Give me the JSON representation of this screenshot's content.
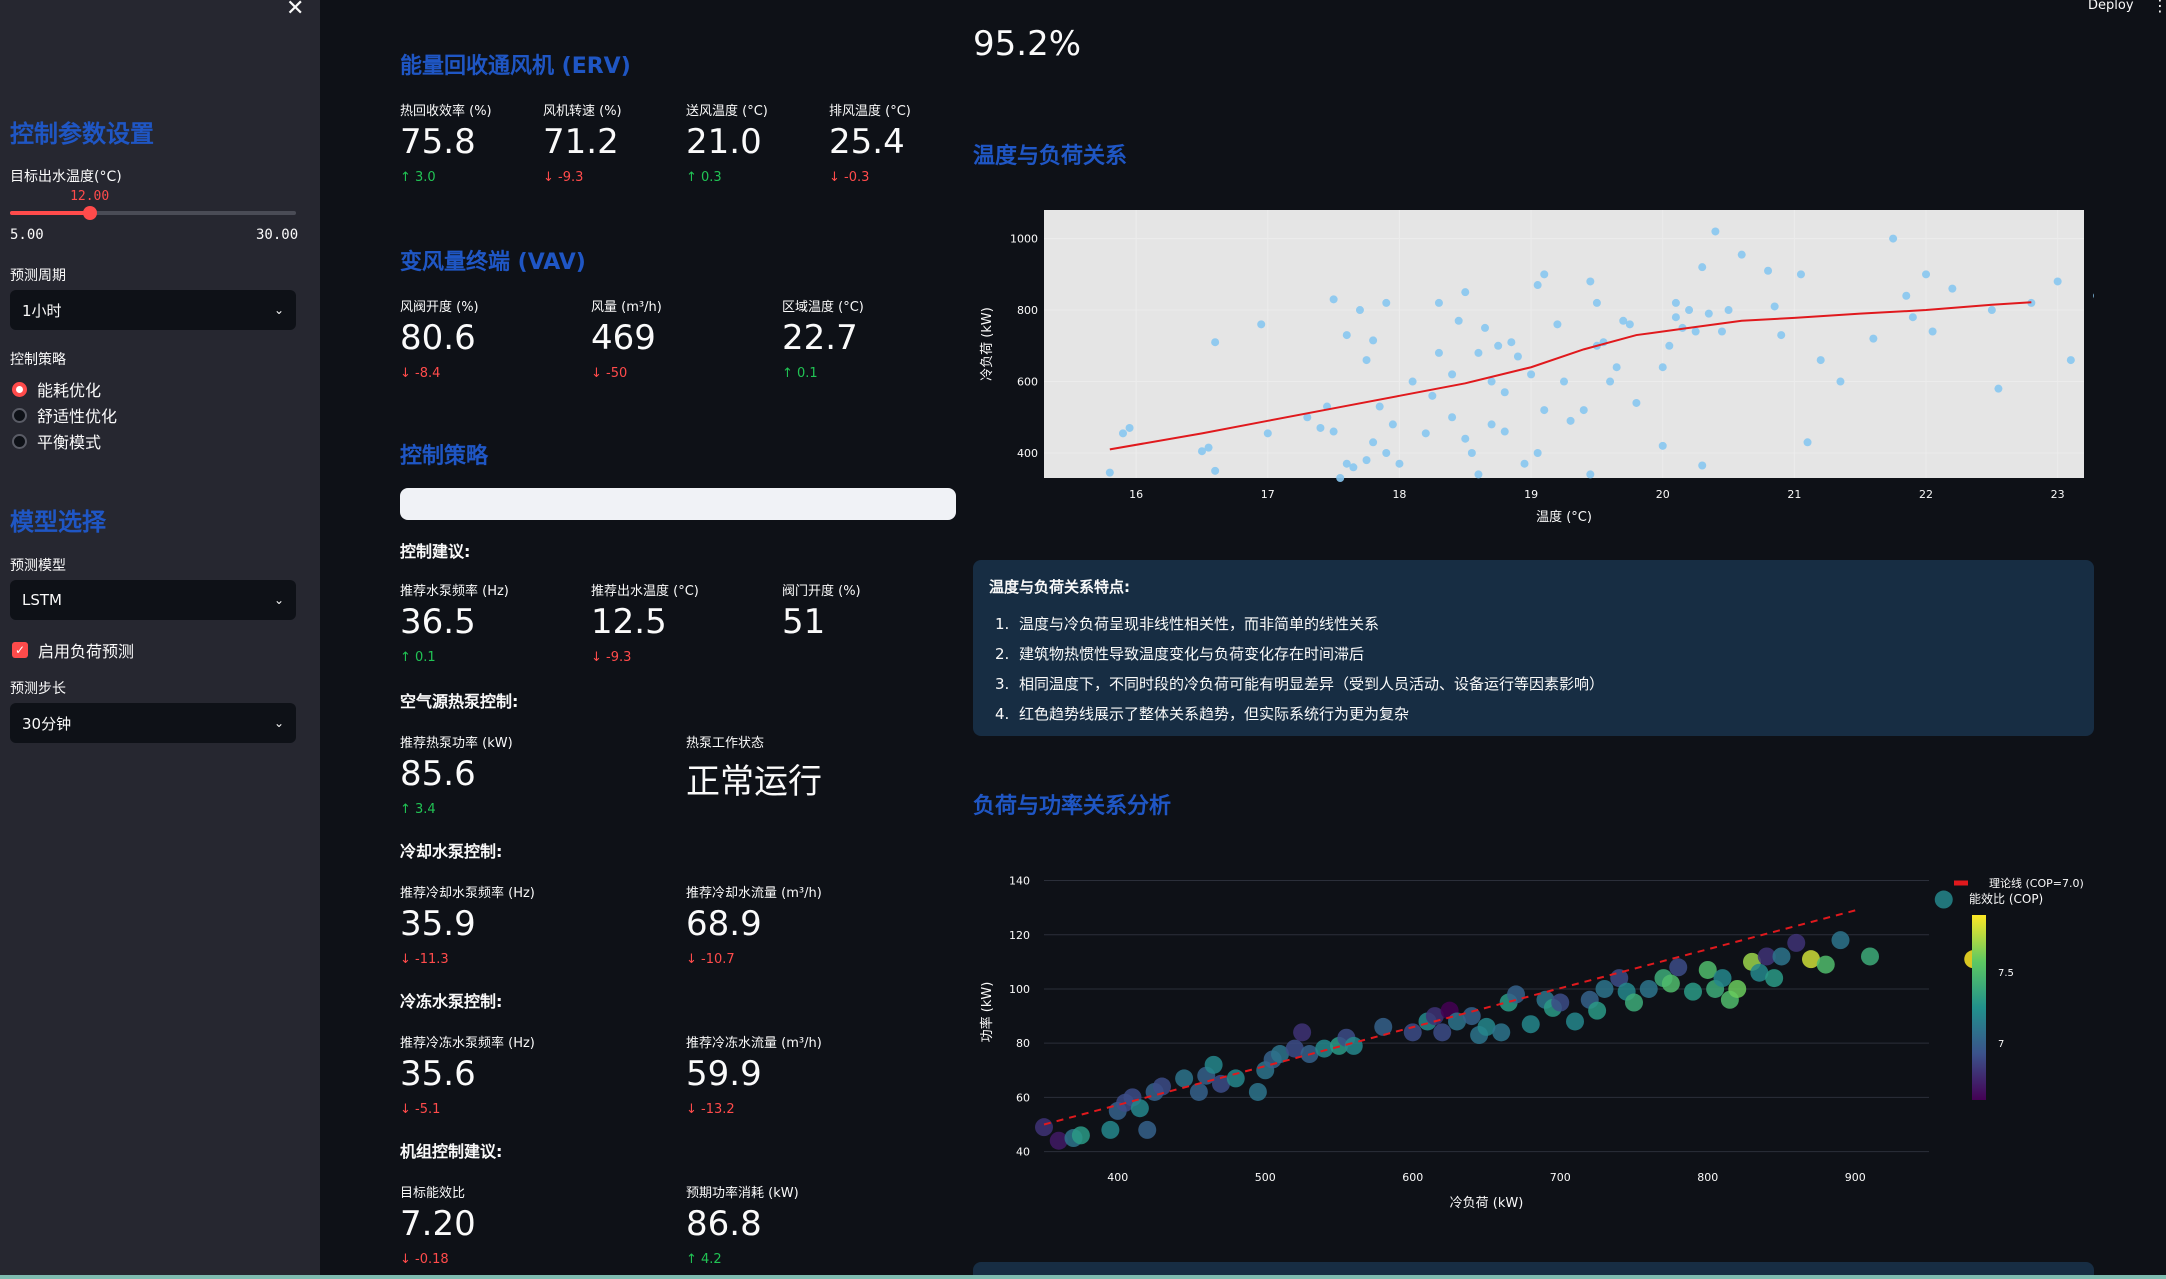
{
  "header": {
    "deploy_label": "Deploy",
    "menu_icon": "kebab-menu-icon"
  },
  "sidebar": {
    "close_icon": "close-icon",
    "control_heading": "控制参数设置",
    "target_temp": {
      "label": "目标出水温度(°C)",
      "value": "12.00",
      "min": "5.00",
      "max": "30.00",
      "fraction": 0.28
    },
    "forecast_period": {
      "label": "预测周期",
      "selected": "1小时"
    },
    "strategy": {
      "label": "控制策略",
      "options": [
        "能耗优化",
        "舒适性优化",
        "平衡模式"
      ],
      "selected_index": 0
    },
    "model_heading": "模型选择",
    "model": {
      "label": "预测模型",
      "selected": "LSTM"
    },
    "load_forecast": {
      "label": "启用负荷预测",
      "checked": true
    },
    "step": {
      "label": "预测步长",
      "selected": "30分钟"
    }
  },
  "erv": {
    "title": "能量回收通风机 (ERV)",
    "metrics": [
      {
        "label": "热回收效率 (%)",
        "value": "75.8",
        "delta": "3.0",
        "dir": "up"
      },
      {
        "label": "风机转速 (%)",
        "value": "71.2",
        "delta": "-9.3",
        "dir": "down"
      },
      {
        "label": "送风温度 (°C)",
        "value": "21.0",
        "delta": "0.3",
        "dir": "up"
      },
      {
        "label": "排风温度 (°C)",
        "value": "25.4",
        "delta": "-0.3",
        "dir": "down"
      }
    ]
  },
  "vav": {
    "title": "变风量终端 (VAV)",
    "metrics": [
      {
        "label": "风阀开度 (%)",
        "value": "80.6",
        "delta": "-8.4",
        "dir": "down"
      },
      {
        "label": "风量 (m³/h)",
        "value": "469",
        "delta": "-50",
        "dir": "down"
      },
      {
        "label": "区域温度 (°C)",
        "value": "22.7",
        "delta": "0.1",
        "dir": "up"
      }
    ]
  },
  "strategy": {
    "title": "控制策略",
    "advice_label": "控制建议:",
    "pump": [
      {
        "label": "推荐水泵频率 (Hz)",
        "value": "36.5",
        "delta": "0.1",
        "dir": "up"
      },
      {
        "label": "推荐出水温度 (°C)",
        "value": "12.5",
        "delta": "-9.3",
        "dir": "down"
      },
      {
        "label": "阀门开度 (%)",
        "value": "51"
      }
    ],
    "heatpump_label": "空气源热泵控制:",
    "heatpump_power": {
      "label": "推荐热泵功率 (kW)",
      "value": "85.6",
      "delta": "3.4",
      "dir": "up"
    },
    "heatpump_state": {
      "label": "热泵工作状态",
      "value": "正常运行"
    },
    "cooling_label": "冷却水泵控制:",
    "cooling": [
      {
        "label": "推荐冷却水泵频率 (Hz)",
        "value": "35.9",
        "delta": "-11.3",
        "dir": "down"
      },
      {
        "label": "推荐冷却水流量 (m³/h)",
        "value": "68.9",
        "delta": "-10.7",
        "dir": "down"
      }
    ],
    "chilled_label": "冷冻水泵控制:",
    "chilled": [
      {
        "label": "推荐冷冻水泵频率 (Hz)",
        "value": "35.6",
        "delta": "-5.1",
        "dir": "down"
      },
      {
        "label": "推荐冷冻水流量 (m³/h)",
        "value": "59.9",
        "delta": "-13.2",
        "dir": "down"
      }
    ],
    "unit_label": "机组控制建议:",
    "unit": [
      {
        "label": "目标能效比",
        "value": "7.20",
        "delta": "-0.18",
        "dir": "down"
      },
      {
        "label": "预期功率消耗 (kW)",
        "value": "86.8",
        "delta": "4.2",
        "dir": "up"
      }
    ]
  },
  "right": {
    "top_value": "95.2%",
    "temp_load_title": "温度与负荷关系",
    "notes_title": "温度与负荷关系特点:",
    "notes": [
      "温度与冷负荷呈现非线性相关性，而非简单的线性关系",
      "建筑物热惯性导致温度变化与负荷变化存在时间滞后",
      "相同温度下，不同时段的冷负荷可能有明显差异（受到人员活动、设备运行等因素影响）",
      "红色趋势线展示了整体关系趋势，但实际系统行为更为复杂"
    ],
    "load_power_title": "负荷与功率关系分析"
  },
  "chart_data": [
    {
      "type": "scatter",
      "xlabel": "温度 (°C)",
      "ylabel": "冷负荷 (kW)",
      "xlim": [
        15.3,
        23.2
      ],
      "ylim": [
        330,
        1080
      ],
      "xticks": [
        16,
        17,
        18,
        19,
        20,
        21,
        22,
        23
      ],
      "yticks": [
        400,
        600,
        800,
        1000
      ],
      "grid": true,
      "point_color": "#87c7f0",
      "trend_color": "#e0191d",
      "points": [
        [
          15.8,
          345
        ],
        [
          15.9,
          455
        ],
        [
          15.95,
          470
        ],
        [
          16.5,
          405
        ],
        [
          16.55,
          415
        ],
        [
          16.6,
          350
        ],
        [
          16.6,
          710
        ],
        [
          16.95,
          760
        ],
        [
          17.0,
          455
        ],
        [
          17.3,
          500
        ],
        [
          17.4,
          470
        ],
        [
          17.45,
          530
        ],
        [
          17.5,
          460
        ],
        [
          17.55,
          330
        ],
        [
          17.6,
          370
        ],
        [
          17.5,
          830
        ],
        [
          17.6,
          730
        ],
        [
          17.65,
          360
        ],
        [
          17.7,
          800
        ],
        [
          17.75,
          660
        ],
        [
          17.8,
          430
        ],
        [
          17.75,
          380
        ],
        [
          17.8,
          715
        ],
        [
          17.85,
          530
        ],
        [
          17.9,
          400
        ],
        [
          17.9,
          820
        ],
        [
          17.95,
          480
        ],
        [
          18.0,
          370
        ],
        [
          18.1,
          600
        ],
        [
          18.2,
          455
        ],
        [
          18.25,
          560
        ],
        [
          18.3,
          680
        ],
        [
          18.3,
          820
        ],
        [
          18.4,
          500
        ],
        [
          18.4,
          620
        ],
        [
          18.45,
          770
        ],
        [
          18.5,
          440
        ],
        [
          18.5,
          850
        ],
        [
          18.55,
          400
        ],
        [
          18.6,
          680
        ],
        [
          18.6,
          340
        ],
        [
          18.65,
          750
        ],
        [
          18.7,
          480
        ],
        [
          18.7,
          600
        ],
        [
          18.75,
          700
        ],
        [
          18.8,
          460
        ],
        [
          18.8,
          570
        ],
        [
          18.85,
          710
        ],
        [
          18.9,
          670
        ],
        [
          18.95,
          370
        ],
        [
          19.0,
          620
        ],
        [
          19.05,
          870
        ],
        [
          19.05,
          400
        ],
        [
          19.1,
          520
        ],
        [
          19.1,
          900
        ],
        [
          19.2,
          760
        ],
        [
          19.25,
          600
        ],
        [
          19.3,
          490
        ],
        [
          19.4,
          520
        ],
        [
          19.45,
          340
        ],
        [
          19.45,
          880
        ],
        [
          19.5,
          820
        ],
        [
          19.5,
          700
        ],
        [
          19.55,
          710
        ],
        [
          19.6,
          600
        ],
        [
          19.65,
          640
        ],
        [
          19.7,
          770
        ],
        [
          19.75,
          760
        ],
        [
          19.8,
          540
        ],
        [
          20.0,
          420
        ],
        [
          20.0,
          640
        ],
        [
          20.05,
          700
        ],
        [
          20.1,
          780
        ],
        [
          20.1,
          820
        ],
        [
          20.15,
          750
        ],
        [
          20.2,
          800
        ],
        [
          20.25,
          740
        ],
        [
          20.3,
          365
        ],
        [
          20.3,
          920
        ],
        [
          20.35,
          790
        ],
        [
          20.4,
          1020
        ],
        [
          20.45,
          740
        ],
        [
          20.5,
          800
        ],
        [
          20.6,
          955
        ],
        [
          20.8,
          910
        ],
        [
          20.85,
          810
        ],
        [
          20.9,
          730
        ],
        [
          21.05,
          900
        ],
        [
          21.1,
          430
        ],
        [
          21.2,
          660
        ],
        [
          21.35,
          600
        ],
        [
          21.6,
          720
        ],
        [
          21.75,
          1000
        ],
        [
          21.85,
          840
        ],
        [
          21.9,
          780
        ],
        [
          22.0,
          900
        ],
        [
          22.05,
          740
        ],
        [
          22.2,
          860
        ],
        [
          22.5,
          800
        ],
        [
          22.55,
          580
        ],
        [
          22.8,
          820
        ],
        [
          23.0,
          880
        ],
        [
          23.1,
          660
        ],
        [
          23.3,
          840
        ]
      ],
      "trend": [
        [
          15.8,
          410
        ],
        [
          16.5,
          455
        ],
        [
          17.0,
          490
        ],
        [
          17.5,
          525
        ],
        [
          18.0,
          560
        ],
        [
          18.5,
          595
        ],
        [
          19.0,
          640
        ],
        [
          19.4,
          690
        ],
        [
          19.8,
          730
        ],
        [
          20.2,
          750
        ],
        [
          20.6,
          770
        ],
        [
          21.0,
          778
        ],
        [
          21.5,
          790
        ],
        [
          22.0,
          800
        ],
        [
          22.5,
          815
        ],
        [
          22.8,
          822
        ]
      ]
    },
    {
      "type": "scatter",
      "xlabel": "冷负荷 (kW)",
      "ylabel": "功率 (kW)",
      "xlim": [
        350,
        950
      ],
      "ylim": [
        38,
        145
      ],
      "xticks": [
        400,
        500,
        600,
        700,
        800,
        900
      ],
      "yticks": [
        40,
        60,
        80,
        100,
        120,
        140
      ],
      "grid": true,
      "legend": "theoretical-line top-right, colorbar right",
      "series_legend": "理论线 (COP=7.0)",
      "colorbar_label": "能效比 (COP)",
      "colorbar_ticks": [
        "7",
        "7.5"
      ],
      "colorbar_range": [
        6.6,
        7.9
      ],
      "trend_color": "#e0191d",
      "points": [
        [
          350,
          49,
          6.8
        ],
        [
          360,
          44,
          6.7
        ],
        [
          370,
          45,
          7.1
        ],
        [
          375,
          46,
          7.3
        ],
        [
          395,
          48,
          7.2
        ],
        [
          400,
          55,
          7.0
        ],
        [
          405,
          58,
          6.9
        ],
        [
          410,
          60,
          6.9
        ],
        [
          415,
          56,
          7.2
        ],
        [
          420,
          48,
          7.0
        ],
        [
          425,
          62,
          7.0
        ],
        [
          430,
          64,
          6.9
        ],
        [
          445,
          67,
          7.1
        ],
        [
          455,
          62,
          7.0
        ],
        [
          460,
          68,
          7.0
        ],
        [
          465,
          72,
          7.2
        ],
        [
          470,
          65,
          6.9
        ],
        [
          480,
          67,
          7.2
        ],
        [
          495,
          62,
          7.1
        ],
        [
          500,
          70,
          7.1
        ],
        [
          505,
          74,
          7.0
        ],
        [
          510,
          76,
          7.1
        ],
        [
          520,
          78,
          6.9
        ],
        [
          525,
          84,
          6.8
        ],
        [
          530,
          76,
          7.0
        ],
        [
          540,
          78,
          7.2
        ],
        [
          550,
          79,
          7.3
        ],
        [
          555,
          82,
          6.9
        ],
        [
          560,
          79,
          7.2
        ],
        [
          580,
          86,
          7.0
        ],
        [
          600,
          84,
          6.9
        ],
        [
          610,
          88,
          7.2
        ],
        [
          615,
          90,
          6.8
        ],
        [
          620,
          84,
          6.9
        ],
        [
          625,
          92,
          6.6
        ],
        [
          630,
          88,
          7.1
        ],
        [
          640,
          90,
          7.0
        ],
        [
          645,
          83,
          7.1
        ],
        [
          650,
          86,
          7.2
        ],
        [
          660,
          84,
          7.1
        ],
        [
          665,
          95,
          7.3
        ],
        [
          670,
          98,
          7.0
        ],
        [
          680,
          87,
          7.2
        ],
        [
          690,
          96,
          7.1
        ],
        [
          695,
          93,
          7.3
        ],
        [
          700,
          95,
          6.9
        ],
        [
          710,
          88,
          7.2
        ],
        [
          720,
          96,
          7.0
        ],
        [
          725,
          92,
          7.3
        ],
        [
          730,
          100,
          7.1
        ],
        [
          740,
          104,
          6.9
        ],
        [
          745,
          99,
          7.2
        ],
        [
          750,
          95,
          7.4
        ],
        [
          760,
          100,
          7.1
        ],
        [
          770,
          104,
          7.4
        ],
        [
          775,
          102,
          7.5
        ],
        [
          780,
          108,
          6.9
        ],
        [
          790,
          99,
          7.3
        ],
        [
          800,
          107,
          7.5
        ],
        [
          805,
          100,
          7.4
        ],
        [
          810,
          104,
          7.2
        ],
        [
          815,
          96,
          7.5
        ],
        [
          820,
          100,
          7.6
        ],
        [
          830,
          110,
          7.7
        ],
        [
          835,
          106,
          7.2
        ],
        [
          840,
          112,
          6.8
        ],
        [
          845,
          104,
          7.3
        ],
        [
          850,
          112,
          7.1
        ],
        [
          860,
          117,
          6.8
        ],
        [
          870,
          111,
          7.8
        ],
        [
          880,
          109,
          7.5
        ],
        [
          890,
          118,
          7.1
        ],
        [
          910,
          112,
          7.4
        ],
        [
          960,
          133,
          7.2
        ],
        [
          980,
          111,
          7.9
        ]
      ],
      "trend": [
        [
          350,
          50
        ],
        [
          900,
          129
        ]
      ]
    }
  ]
}
